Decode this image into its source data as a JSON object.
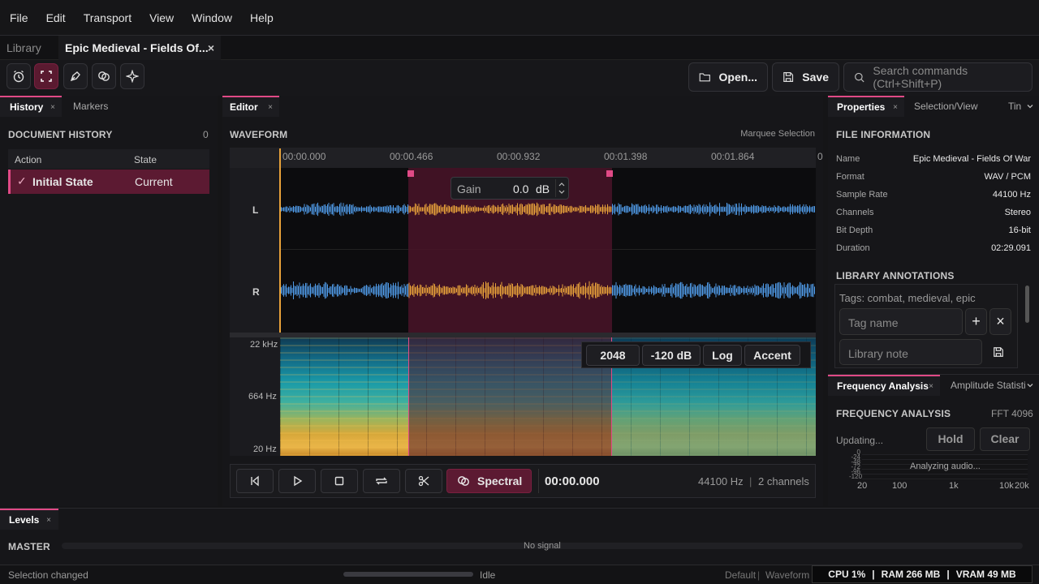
{
  "menu": [
    "File",
    "Edit",
    "Transport",
    "View",
    "Window",
    "Help"
  ],
  "doc_tabs": {
    "library": "Library",
    "active": "Epic Medieval - Fields Of...",
    "close": "×"
  },
  "toolbar": {
    "open_label": "Open...",
    "save_label": "Save",
    "search_placeholder": "Search commands (Ctrl+Shift+P)"
  },
  "left_panel": {
    "tabs": [
      {
        "label": "History",
        "close": "×"
      },
      {
        "label": "Markers"
      }
    ],
    "section_title": "DOCUMENT HISTORY",
    "count": "0",
    "columns": {
      "action": "Action",
      "state": "State"
    },
    "rows": [
      {
        "check": "✓",
        "action": "Initial State",
        "state": "Current"
      }
    ]
  },
  "editor": {
    "tab": "Editor",
    "tab_close": "×",
    "title": "WAVEFORM",
    "mode": "Marquee Selection",
    "timeline": [
      "00:00.000",
      "00:00.466",
      "00:00.932",
      "00:01.398",
      "00:01.864",
      "0"
    ],
    "channels": [
      "L",
      "R"
    ],
    "gain": {
      "label": "Gain",
      "value": "0.0",
      "unit": "dB"
    },
    "freq_labels": [
      "22 kHz",
      "664 Hz",
      "20 Hz"
    ],
    "spectral_opts": [
      "2048",
      "-120 dB",
      "Log",
      "Accent"
    ],
    "selection": {
      "start_fraction": 0.24,
      "end_fraction": 0.62
    }
  },
  "transport": {
    "spectral": "Spectral",
    "time": "00:00.000",
    "rate": "44100 Hz",
    "sep": "|",
    "channels": "2 channels"
  },
  "right_panel": {
    "tabs": [
      {
        "label": "Properties",
        "close": "×"
      },
      {
        "label": "Selection/View"
      },
      {
        "label": "Tin"
      }
    ],
    "file_info_title": "FILE INFORMATION",
    "props": [
      {
        "k": "Name",
        "v": "Epic Medieval - Fields Of War"
      },
      {
        "k": "Format",
        "v": "WAV / PCM"
      },
      {
        "k": "Sample Rate",
        "v": "44100 Hz"
      },
      {
        "k": "Channels",
        "v": "Stereo"
      },
      {
        "k": "Bit Depth",
        "v": "16-bit"
      },
      {
        "k": "Duration",
        "v": "02:29.091"
      }
    ],
    "annotations_title": "LIBRARY ANNOTATIONS",
    "tags": "Tags: combat, medieval, epic",
    "tag_placeholder": "Tag name",
    "note_placeholder": "Library note",
    "add": "+",
    "remove": "×"
  },
  "freq_panel": {
    "tabs": [
      {
        "label": "Frequency Analysis",
        "close": "×"
      },
      {
        "label": "Amplitude Statistic"
      }
    ],
    "title": "FREQUENCY ANALYSIS",
    "fft": "FFT 4096",
    "status": "Updating...",
    "hold": "Hold",
    "clear": "Clear",
    "db_labels": [
      "0",
      "-24",
      "-48",
      "-72",
      "-96",
      "-120"
    ],
    "analyzing": "Analyzing audio...",
    "x_labels": [
      "20",
      "100",
      "1k",
      "10k",
      "20k"
    ]
  },
  "levels": {
    "tab": "Levels",
    "close": "×",
    "master": "MASTER",
    "no_signal": "No signal"
  },
  "status_bar": {
    "left": "Selection changed",
    "idle": "Idle",
    "default": "Default",
    "sep": "|",
    "mode": "Waveform",
    "cpu": "CPU 1%",
    "ram": "RAM 266 MB",
    "vram": "VRAM 49 MB"
  },
  "colors": {
    "accent": "#e04a86",
    "wave": "#4f9ae6",
    "wave_sel": "#e8a23a",
    "selection": "#4a1428"
  }
}
